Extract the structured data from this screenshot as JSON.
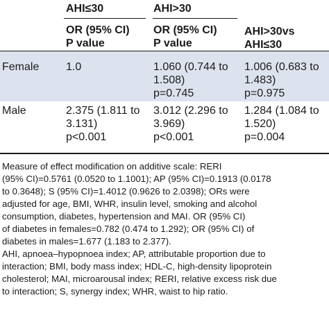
{
  "header": {
    "group1": "AHI≤30",
    "group2": "AHI>30",
    "sub1": "OR (95% CI)\nP value",
    "sub2": "OR (95% CI)\nP value",
    "sub3": "AHI>30vs\nAHI≤30"
  },
  "rows": [
    {
      "label": "Female",
      "c1": "1.0",
      "c2": "1.060 (0.744 to\n1.508)\np=0.745",
      "c3": "1.006 (0.683 to\n1.483)\np=0.975"
    },
    {
      "label": "Male",
      "c1": "2.375 (1.811 to\n3.131)\np<0.001",
      "c2": "3.012 (2.296 to\n3.969)\np<0.001",
      "c3": "1.284 (1.084 to\n1.520)\np=0.004"
    }
  ],
  "notes": "Measure of effect modification on additive scale: RERI\n(95% CI)=0.5761 (0.0520 to 1.1001); AP (95% CI)=0.1913 (0.0178\nto 0.3648); S (95% CI)=1.4012 (0.9626 to 2.0398); ORs were\nadjusted for age, BMI, WHR, insulin level, smoking and alcohol\nconsumption, diabetes, hypertension and MAI. OR (95% CI)\nof diabetes in females=0.782 (0.474 to 1.292); OR (95% CI) of\ndiabetes in males=1.677 (1.183 to 2.377).\nAHI, apnoea–hypopnoea index; AP, attributable proportion due to\ninteraction; BMI, body mass index; HDL-C, high-density lipoprotein\ncholesterol; MAI, microarousal index; RERI, relative excess risk due\nto interaction; S, synergy index; WHR, waist to hip ratio.",
  "colors": {
    "band": "#dde3ee",
    "text": "#1a1a1a"
  }
}
